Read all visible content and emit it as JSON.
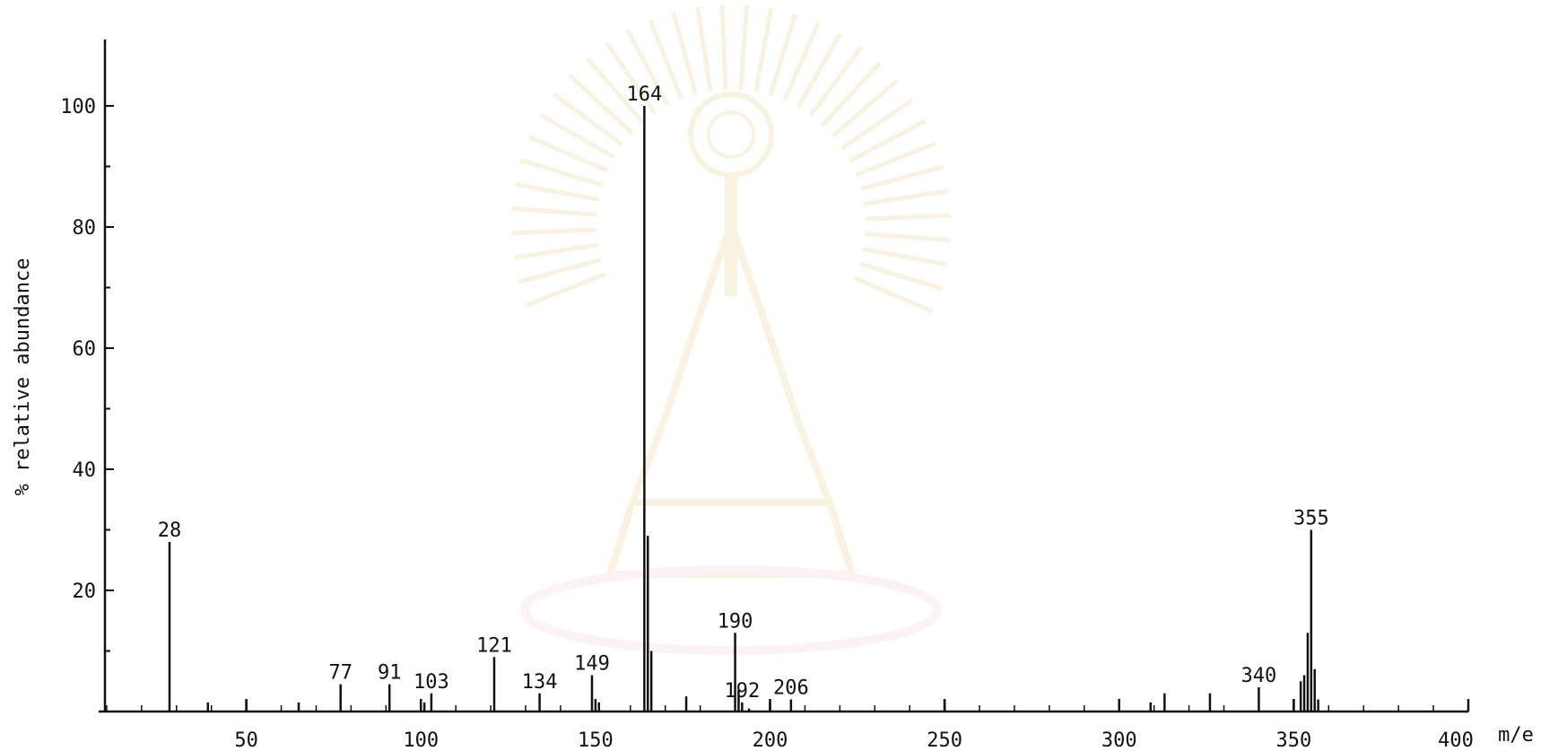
{
  "chart_data": {
    "type": "bar",
    "xlabel": "m/e",
    "ylabel": "% relative abundance",
    "xlim": [
      0,
      400
    ],
    "ylim": [
      0,
      100
    ],
    "x_ticks": [
      50,
      100,
      150,
      200,
      250,
      300,
      350,
      400
    ],
    "y_ticks": [
      20,
      40,
      60,
      80,
      100
    ],
    "grid": false,
    "colors": {
      "ink": "#111111",
      "background": "#ffffff"
    },
    "peaks": [
      {
        "x": 28,
        "y": 28,
        "label": "28"
      },
      {
        "x": 39,
        "y": 1.5
      },
      {
        "x": 50,
        "y": 2
      },
      {
        "x": 65,
        "y": 1.5
      },
      {
        "x": 77,
        "y": 4.5,
        "label": "77"
      },
      {
        "x": 91,
        "y": 4.5,
        "label": "91"
      },
      {
        "x": 101,
        "y": 1.5
      },
      {
        "x": 103,
        "y": 3,
        "label": "103"
      },
      {
        "x": 121,
        "y": 9,
        "label": "121"
      },
      {
        "x": 134,
        "y": 3,
        "label": "134"
      },
      {
        "x": 149,
        "y": 6,
        "label": "149"
      },
      {
        "x": 151,
        "y": 1.5
      },
      {
        "x": 164,
        "y": 100,
        "label": "164"
      },
      {
        "x": 165,
        "y": 29
      },
      {
        "x": 166,
        "y": 10
      },
      {
        "x": 176,
        "y": 2.5
      },
      {
        "x": 190,
        "y": 13,
        "label": "190"
      },
      {
        "x": 191,
        "y": 3.5
      },
      {
        "x": 192,
        "y": 1.5,
        "label": "192"
      },
      {
        "x": 194,
        "y": 0.5
      },
      {
        "x": 200,
        "y": 1.5
      },
      {
        "x": 206,
        "y": 2,
        "label": "206"
      },
      {
        "x": 250,
        "y": 2
      },
      {
        "x": 300,
        "y": 2
      },
      {
        "x": 309,
        "y": 1.5
      },
      {
        "x": 313,
        "y": 3
      },
      {
        "x": 326,
        "y": 3
      },
      {
        "x": 340,
        "y": 4,
        "label": "340"
      },
      {
        "x": 350,
        "y": 2
      },
      {
        "x": 352,
        "y": 5
      },
      {
        "x": 353,
        "y": 6
      },
      {
        "x": 354,
        "y": 13
      },
      {
        "x": 355,
        "y": 30,
        "label": "355"
      },
      {
        "x": 356,
        "y": 7
      },
      {
        "x": 357,
        "y": 2
      }
    ]
  }
}
